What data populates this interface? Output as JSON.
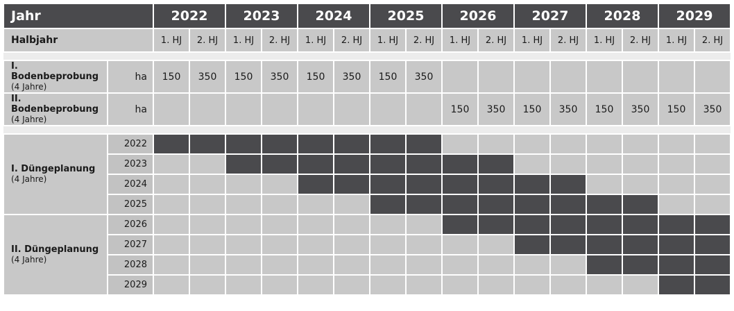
{
  "header": {
    "first": "Jahr",
    "years": [
      "2022",
      "2023",
      "2024",
      "2025",
      "2026",
      "2027",
      "2028",
      "2029"
    ]
  },
  "halbjahr": {
    "label": "Halbjahr",
    "h1": "1. HJ",
    "h2": "2. HJ"
  },
  "bodenbeprobung": [
    {
      "label": "I. Bodenbeprobung",
      "sub": "(4 Jahre)",
      "unit": "ha",
      "values": [
        "150",
        "350",
        "150",
        "350",
        "150",
        "350",
        "150",
        "350",
        "",
        "",
        "",
        "",
        "",
        "",
        "",
        ""
      ]
    },
    {
      "label": "II. Bodenbeprobung",
      "sub": "(4 Jahre)",
      "unit": "ha",
      "values": [
        "",
        "",
        "",
        "",
        "",
        "",
        "",
        "",
        "150",
        "350",
        "150",
        "350",
        "150",
        "350",
        "150",
        "350"
      ]
    }
  ],
  "duengeplanung": [
    {
      "label": "I. Düngeplanung",
      "sub": "(4 Jahre)",
      "rows": [
        {
          "year": "2022",
          "active_start": 0
        },
        {
          "year": "2023",
          "active_start": 2
        },
        {
          "year": "2024",
          "active_start": 4
        },
        {
          "year": "2025",
          "active_start": 6
        }
      ]
    },
    {
      "label": "II. Düngeplanung",
      "sub": "(4 Jahre)",
      "rows": [
        {
          "year": "2026",
          "active_start": 8
        },
        {
          "year": "2027",
          "active_start": 10
        },
        {
          "year": "2028",
          "active_start": 12
        },
        {
          "year": "2029",
          "active_start": 14
        }
      ]
    }
  ],
  "active_span": 8,
  "colors": {
    "dark": "#4a4a4d",
    "light": "#c8c8c8"
  }
}
